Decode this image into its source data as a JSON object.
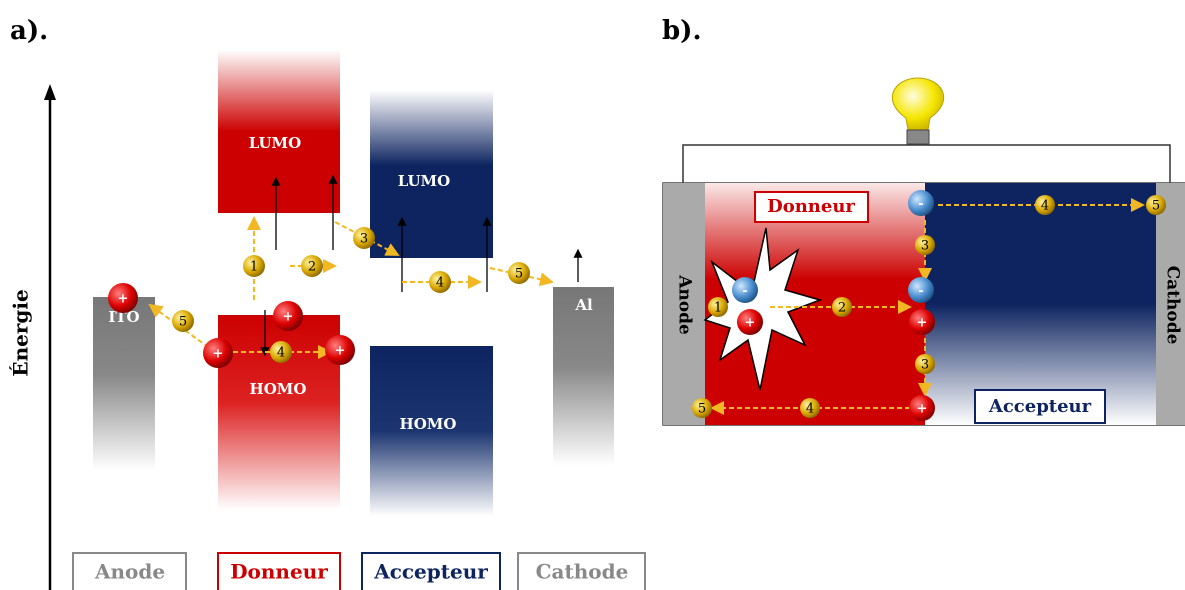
{
  "panel_a": {
    "label": "a).",
    "axis_label": "Énergie",
    "donor": {
      "lumo": "LUMO",
      "homo": "HOMO"
    },
    "acceptor": {
      "lumo": "LUMO",
      "homo": "HOMO"
    },
    "anode_label": "ITO",
    "cathode_label": "Al",
    "steps": [
      1,
      2,
      3,
      4,
      4,
      5,
      5
    ],
    "holes": [
      "+",
      "+",
      "+",
      "+"
    ],
    "legend": [
      "Anode",
      "Donneur",
      "Accepteur",
      "Cathode"
    ]
  },
  "panel_b": {
    "label": "b).",
    "donor": "Donneur",
    "acceptor": "Accepteur",
    "anode": "Anode",
    "cathode": "Cathode",
    "steps": [
      1,
      2,
      3,
      3,
      4,
      4,
      5,
      5
    ],
    "holes": [
      "+",
      "+",
      "+"
    ],
    "electrons": [
      "-",
      "-",
      "-"
    ]
  }
}
